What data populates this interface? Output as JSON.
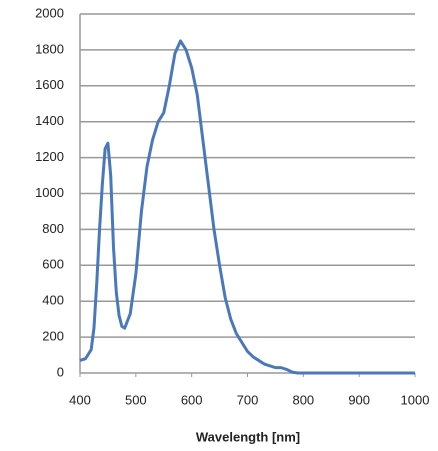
{
  "chart_data": {
    "type": "line",
    "x_label": "Wavelength [nm]",
    "x": [
      400,
      410,
      420,
      425,
      430,
      435,
      440,
      445,
      450,
      455,
      460,
      465,
      470,
      475,
      480,
      490,
      500,
      510,
      520,
      530,
      540,
      550,
      560,
      570,
      580,
      590,
      600,
      610,
      620,
      630,
      640,
      650,
      660,
      670,
      680,
      690,
      700,
      710,
      720,
      730,
      740,
      750,
      760,
      770,
      780,
      790,
      800,
      1000
    ],
    "values": [
      70,
      80,
      130,
      250,
      500,
      800,
      1050,
      1250,
      1280,
      1100,
      700,
      450,
      320,
      260,
      250,
      330,
      550,
      900,
      1150,
      1300,
      1400,
      1450,
      1600,
      1780,
      1850,
      1800,
      1700,
      1550,
      1300,
      1050,
      800,
      600,
      420,
      300,
      220,
      170,
      120,
      90,
      70,
      50,
      40,
      30,
      30,
      20,
      5,
      0,
      0,
      0
    ],
    "color": "#4a78bd",
    "xlim": [
      400,
      1000
    ],
    "xticks": [
      400,
      500,
      600,
      700,
      800,
      900,
      1000
    ],
    "ylim": [
      0,
      2000
    ],
    "yticks": [
      0,
      200,
      400,
      600,
      800,
      1000,
      1200,
      1400,
      1600,
      1800,
      2000
    ],
    "grid": true
  }
}
